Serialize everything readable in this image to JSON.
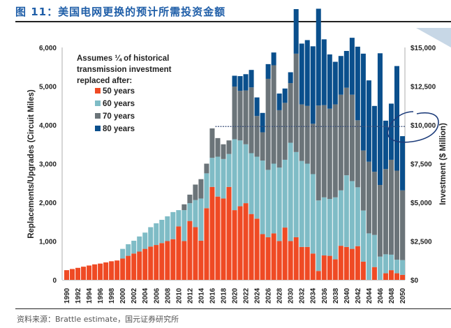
{
  "header": {
    "title": "图 11：美国电网更换的预计所需投资金额"
  },
  "footer": {
    "source": "资料来源：Brattle estimate，国元证券研究所"
  },
  "chart_data": {
    "type": "bar",
    "stacked": true,
    "title": "",
    "xlabel": "",
    "ylabel": "Replacements/Upgrades (Circuit Miles)",
    "y2label": "Investment ($ Million)",
    "ylim": [
      0,
      6000
    ],
    "y2lim": [
      0,
      15000
    ],
    "yticks": [
      "0",
      "1,000",
      "2,000",
      "3,000",
      "4,000",
      "5,000",
      "6,000"
    ],
    "y2ticks": [
      "$0",
      "$2,500",
      "$5,000",
      "$7,500",
      "$10,000",
      "$12,500",
      "$15,000"
    ],
    "legend_title": "Assumes ¼ of historical transmission investment replaced after:",
    "legend_position": "top-left",
    "reference_line": {
      "value_right_axis": 9900,
      "style": "dashed",
      "start_year": 2017
    },
    "annotation": "hand-drawn circle around $10,000",
    "colors": {
      "50 years": "#ef4a24",
      "60 years": "#7fbcc6",
      "70 years": "#6b7479",
      "80 years": "#0a4f8c"
    },
    "categories": [
      "1990",
      "1991",
      "1992",
      "1993",
      "1994",
      "1995",
      "1996",
      "1997",
      "1998",
      "1999",
      "2000",
      "2001",
      "2002",
      "2003",
      "2004",
      "2005",
      "2006",
      "2007",
      "2008",
      "2009",
      "2010",
      "2011",
      "2012",
      "2013",
      "2014",
      "2015",
      "2016",
      "2017",
      "2018",
      "2019",
      "2020",
      "2021",
      "2022",
      "2023",
      "2024",
      "2025",
      "2026",
      "2027",
      "2028",
      "2029",
      "2030",
      "2031",
      "2032",
      "2033",
      "2034",
      "2035",
      "2036",
      "2037",
      "2038",
      "2039",
      "2040",
      "2041",
      "2042",
      "2043",
      "2044",
      "2045",
      "2046",
      "2047",
      "2048",
      "2049",
      "2050"
    ],
    "xtick_labels": [
      "1990",
      "1992",
      "1994",
      "1996",
      "1998",
      "2000",
      "2002",
      "2004",
      "2006",
      "2008",
      "2010",
      "2012",
      "2014",
      "2016",
      "2018",
      "2020",
      "2022",
      "2024",
      "2026",
      "2028",
      "2030",
      "2032",
      "2034",
      "2036",
      "2038",
      "2040",
      "2042",
      "2044",
      "2046",
      "2048",
      "2050"
    ],
    "series": [
      {
        "name": "50 years",
        "values": [
          250,
          280,
          310,
          340,
          370,
          400,
          420,
          450,
          480,
          500,
          550,
          620,
          680,
          730,
          800,
          860,
          900,
          950,
          1000,
          1050,
          1380,
          1000,
          1520,
          1360,
          1010,
          1850,
          2400,
          2150,
          2100,
          2400,
          1800,
          1900,
          1980,
          1700,
          1580,
          1180,
          1100,
          1200,
          1000,
          1350,
          1000,
          1100,
          850,
          850,
          680,
          230,
          630,
          620,
          530,
          880,
          850,
          800,
          870,
          470,
          0,
          330,
          0,
          170,
          250,
          170,
          130
        ]
      },
      {
        "name": "60 years",
        "values": [
          0,
          0,
          0,
          0,
          0,
          0,
          0,
          0,
          0,
          0,
          250,
          300,
          330,
          390,
          420,
          500,
          560,
          600,
          640,
          700,
          420,
          800,
          460,
          700,
          1090,
          900,
          750,
          1030,
          1020,
          850,
          1830,
          1700,
          1520,
          1570,
          1600,
          1900,
          1740,
          1800,
          1900,
          1750,
          2540,
          2200,
          2220,
          2150,
          2050,
          1820,
          1500,
          1470,
          1600,
          1430,
          1850,
          1750,
          1520,
          1320,
          1200,
          830,
          600,
          490,
          400,
          350,
          380
        ]
      },
      {
        "name": "70 years",
        "values": [
          0,
          0,
          0,
          0,
          0,
          0,
          0,
          0,
          0,
          0,
          0,
          0,
          0,
          0,
          0,
          0,
          0,
          0,
          0,
          0,
          0,
          150,
          220,
          400,
          500,
          250,
          760,
          480,
          380,
          350,
          1360,
          1280,
          1390,
          1700,
          1050,
          730,
          2350,
          2540,
          1480,
          1470,
          1540,
          2540,
          1460,
          1490,
          1300,
          2450,
          2380,
          2330,
          2400,
          2470,
          2260,
          2230,
          1730,
          1550,
          1850,
          1630,
          1850,
          2200,
          2450,
          2300,
          1800
        ]
      },
      {
        "name": "80 years",
        "values": [
          0,
          0,
          0,
          0,
          0,
          0,
          0,
          0,
          0,
          0,
          0,
          0,
          0,
          0,
          0,
          0,
          0,
          0,
          0,
          0,
          0,
          0,
          0,
          0,
          0,
          0,
          0,
          0,
          0,
          0,
          280,
          380,
          420,
          450,
          480,
          500,
          380,
          330,
          430,
          370,
          280,
          1150,
          1570,
          1700,
          2000,
          2500,
          1700,
          1400,
          1100,
          1000,
          950,
          1470,
          1900,
          2500,
          2100,
          1700,
          3400,
          1250,
          1450,
          2700,
          1400
        ]
      }
    ]
  }
}
